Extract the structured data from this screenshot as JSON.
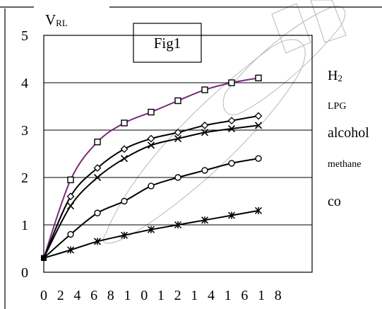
{
  "chart_data": {
    "type": "line",
    "title": "Fig1",
    "ylabel": {
      "main": "V",
      "sub": "RL"
    },
    "xlabel": "",
    "x_tick_labels": [
      "0",
      "2",
      "4",
      "6",
      "8",
      "1",
      "0",
      "1",
      "2",
      "1",
      "4",
      "1",
      "6",
      "1",
      "8"
    ],
    "y_tick_labels": [
      "0",
      "1",
      "2",
      "3",
      "4",
      "5"
    ],
    "ylim": [
      0,
      5
    ],
    "xlim": [
      0,
      20
    ],
    "gridlines": [
      1,
      2,
      3,
      4
    ],
    "grid": "horizontal",
    "legend": "inline-right",
    "series": [
      {
        "name": "H2",
        "name_main": "H",
        "name_sub": "2",
        "color": "#7a2a7c",
        "marker": "square",
        "x": [
          0,
          2,
          4,
          6,
          8,
          10,
          12,
          14,
          16
        ],
        "values": [
          0.3,
          1.95,
          2.75,
          3.15,
          3.38,
          3.62,
          3.85,
          4.0,
          4.1
        ]
      },
      {
        "name": "LPG",
        "color": "#000000",
        "marker": "diamond",
        "x": [
          0,
          2,
          4,
          6,
          8,
          10,
          12,
          14,
          16
        ],
        "values": [
          0.3,
          1.6,
          2.2,
          2.6,
          2.82,
          2.95,
          3.1,
          3.2,
          3.3
        ]
      },
      {
        "name": "alcohol",
        "color": "#000000",
        "marker": "x",
        "x": [
          0,
          2,
          4,
          6,
          8,
          10,
          12,
          14,
          16
        ],
        "values": [
          0.3,
          1.4,
          2.0,
          2.4,
          2.68,
          2.82,
          2.95,
          3.03,
          3.1
        ]
      },
      {
        "name": "methane",
        "color": "#000000",
        "marker": "circle",
        "x": [
          0,
          2,
          4,
          6,
          8,
          10,
          12,
          14,
          16
        ],
        "values": [
          0.3,
          0.8,
          1.25,
          1.5,
          1.82,
          2.0,
          2.15,
          2.3,
          2.4
        ]
      },
      {
        "name": "co",
        "color": "#000000",
        "marker": "star",
        "x": [
          0,
          2,
          4,
          6,
          8,
          10,
          12,
          14,
          16
        ],
        "values": [
          0.3,
          0.47,
          0.65,
          0.78,
          0.9,
          1.0,
          1.1,
          1.2,
          1.3
        ]
      }
    ]
  }
}
